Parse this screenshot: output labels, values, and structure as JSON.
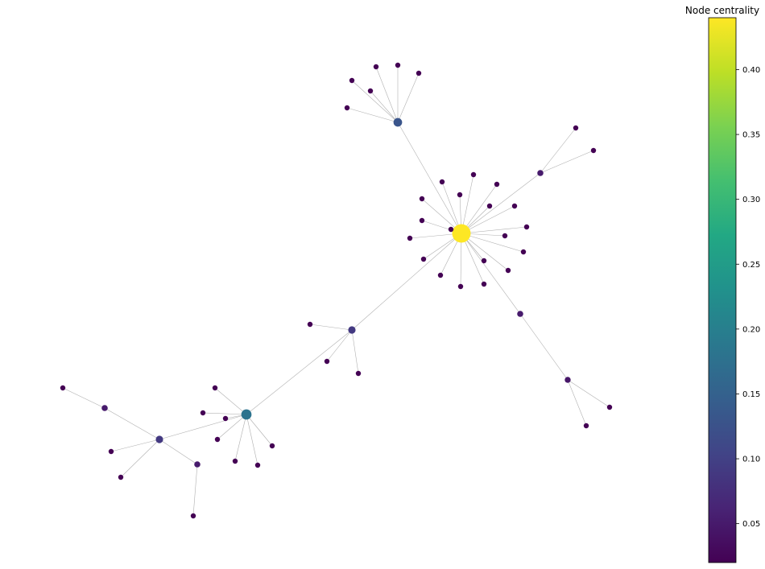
{
  "colorbar": {
    "title": "Node centrality",
    "ticks": [
      "0.05",
      "0.10",
      "0.15",
      "0.20",
      "0.25",
      "0.30",
      "0.35",
      "0.40"
    ],
    "tick_values": [
      0.05,
      0.1,
      0.15,
      0.2,
      0.25,
      0.3,
      0.35,
      0.4
    ],
    "range": [
      0.02,
      0.44
    ],
    "colormap": "viridis"
  },
  "graph": {
    "edge_color": "#b0b0b0",
    "nodes": [
      {
        "id": "hub",
        "centrality": 0.44
      },
      {
        "id": "t1",
        "centrality": 0.13
      },
      {
        "id": "b1",
        "centrality": 0.18
      },
      {
        "id": "m1",
        "centrality": 0.09
      },
      {
        "id": "l1",
        "centrality": 0.09
      },
      {
        "id": "r1",
        "centrality": 0.05
      },
      {
        "id": "r2",
        "centrality": 0.05
      },
      {
        "id": "r3",
        "centrality": 0.045
      },
      {
        "id": "l2",
        "centrality": 0.05
      },
      {
        "id": "l3",
        "centrality": 0.05
      },
      {
        "id": "tl1",
        "centrality": 0.02
      },
      {
        "id": "tl2",
        "centrality": 0.02
      },
      {
        "id": "tl3",
        "centrality": 0.02
      },
      {
        "id": "tl4",
        "centrality": 0.02
      },
      {
        "id": "tl5",
        "centrality": 0.02
      },
      {
        "id": "tl6",
        "centrality": 0.02
      },
      {
        "id": "h1",
        "centrality": 0.02
      },
      {
        "id": "h2",
        "centrality": 0.02
      },
      {
        "id": "h3",
        "centrality": 0.02
      },
      {
        "id": "h4",
        "centrality": 0.02
      },
      {
        "id": "h5",
        "centrality": 0.02
      },
      {
        "id": "h6",
        "centrality": 0.02
      },
      {
        "id": "h7",
        "centrality": 0.02
      },
      {
        "id": "h8",
        "centrality": 0.02
      },
      {
        "id": "h9",
        "centrality": 0.02
      },
      {
        "id": "h10",
        "centrality": 0.02
      },
      {
        "id": "h11",
        "centrality": 0.02
      },
      {
        "id": "h12",
        "centrality": 0.02
      },
      {
        "id": "h13",
        "centrality": 0.02
      },
      {
        "id": "h14",
        "centrality": 0.02
      },
      {
        "id": "h15",
        "centrality": 0.02
      },
      {
        "id": "h16",
        "centrality": 0.02
      },
      {
        "id": "h17",
        "centrality": 0.02
      },
      {
        "id": "h18",
        "centrality": 0.02
      },
      {
        "id": "h19",
        "centrality": 0.02
      },
      {
        "id": "r1a",
        "centrality": 0.02
      },
      {
        "id": "r1b",
        "centrality": 0.02
      },
      {
        "id": "r3a",
        "centrality": 0.02
      },
      {
        "id": "r3b",
        "centrality": 0.02
      },
      {
        "id": "m1a",
        "centrality": 0.02
      },
      {
        "id": "m1b",
        "centrality": 0.02
      },
      {
        "id": "m1c",
        "centrality": 0.02
      },
      {
        "id": "b1a",
        "centrality": 0.02
      },
      {
        "id": "b1b",
        "centrality": 0.02
      },
      {
        "id": "b1c",
        "centrality": 0.02
      },
      {
        "id": "b1d",
        "centrality": 0.02
      },
      {
        "id": "b1e",
        "centrality": 0.02
      },
      {
        "id": "b1f",
        "centrality": 0.02
      },
      {
        "id": "b1g",
        "centrality": 0.02
      },
      {
        "id": "l2a",
        "centrality": 0.02
      },
      {
        "id": "l1a",
        "centrality": 0.02
      },
      {
        "id": "l1b",
        "centrality": 0.02
      },
      {
        "id": "l3a",
        "centrality": 0.02
      }
    ],
    "edges": [
      [
        "hub",
        "t1"
      ],
      [
        "hub",
        "m1"
      ],
      [
        "hub",
        "r1"
      ],
      [
        "hub",
        "r2"
      ],
      [
        "hub",
        "h1"
      ],
      [
        "hub",
        "h2"
      ],
      [
        "hub",
        "h3"
      ],
      [
        "hub",
        "h4"
      ],
      [
        "hub",
        "h5"
      ],
      [
        "hub",
        "h6"
      ],
      [
        "hub",
        "h7"
      ],
      [
        "hub",
        "h8"
      ],
      [
        "hub",
        "h9"
      ],
      [
        "hub",
        "h10"
      ],
      [
        "hub",
        "h11"
      ],
      [
        "hub",
        "h12"
      ],
      [
        "hub",
        "h13"
      ],
      [
        "hub",
        "h14"
      ],
      [
        "hub",
        "h15"
      ],
      [
        "hub",
        "h16"
      ],
      [
        "hub",
        "h17"
      ],
      [
        "hub",
        "h18"
      ],
      [
        "hub",
        "h19"
      ],
      [
        "t1",
        "tl1"
      ],
      [
        "t1",
        "tl2"
      ],
      [
        "t1",
        "tl3"
      ],
      [
        "t1",
        "tl4"
      ],
      [
        "t1",
        "tl5"
      ],
      [
        "t1",
        "tl6"
      ],
      [
        "r1",
        "r1a"
      ],
      [
        "r1",
        "r1b"
      ],
      [
        "r2",
        "r3"
      ],
      [
        "r3",
        "r3a"
      ],
      [
        "r3",
        "r3b"
      ],
      [
        "m1",
        "b1"
      ],
      [
        "m1",
        "m1a"
      ],
      [
        "m1",
        "m1b"
      ],
      [
        "m1",
        "m1c"
      ],
      [
        "b1",
        "l1"
      ],
      [
        "b1",
        "b1a"
      ],
      [
        "b1",
        "b1b"
      ],
      [
        "b1",
        "b1c"
      ],
      [
        "b1",
        "b1d"
      ],
      [
        "b1",
        "b1e"
      ],
      [
        "b1",
        "b1f"
      ],
      [
        "b1",
        "b1g"
      ],
      [
        "l1",
        "l2"
      ],
      [
        "l1",
        "l3"
      ],
      [
        "l1",
        "l1a"
      ],
      [
        "l1",
        "l1b"
      ],
      [
        "l2",
        "l2a"
      ],
      [
        "l3",
        "l3a"
      ]
    ]
  }
}
